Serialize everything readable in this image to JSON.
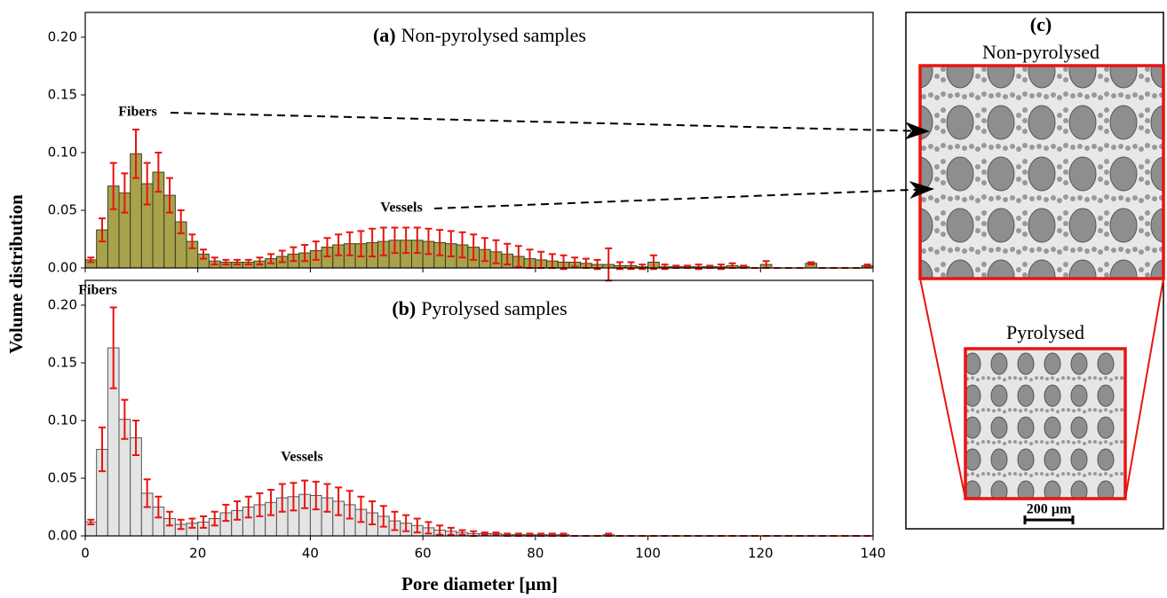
{
  "chart_data": [
    {
      "type": "histogram",
      "label": "(a)",
      "title": "Non-pyrolysed samples",
      "ylabel": "Volume distribution",
      "bins": [
        0,
        2,
        4,
        6,
        8,
        10,
        12,
        14,
        16,
        18,
        20,
        22,
        24,
        26,
        28,
        30,
        32,
        34,
        36,
        38,
        40,
        42,
        44,
        46,
        48,
        50,
        52,
        54,
        56,
        58,
        60,
        62,
        64,
        66,
        68,
        70,
        72,
        74,
        76,
        78,
        80,
        82,
        84,
        86,
        88,
        90,
        92,
        94,
        96,
        98,
        100,
        102,
        104,
        106,
        108,
        110,
        112,
        114,
        116,
        118,
        120,
        122,
        124,
        126,
        128,
        130,
        132,
        134,
        136,
        138,
        140
      ],
      "values": [
        0.007,
        0.033,
        0.071,
        0.065,
        0.099,
        0.073,
        0.083,
        0.063,
        0.04,
        0.023,
        0.012,
        0.006,
        0.005,
        0.005,
        0.005,
        0.006,
        0.008,
        0.01,
        0.012,
        0.013,
        0.015,
        0.018,
        0.02,
        0.021,
        0.021,
        0.022,
        0.023,
        0.024,
        0.024,
        0.024,
        0.023,
        0.022,
        0.021,
        0.02,
        0.018,
        0.016,
        0.014,
        0.012,
        0.01,
        0.008,
        0.007,
        0.006,
        0.005,
        0.005,
        0.004,
        0.003,
        0.003,
        0.002,
        0.002,
        0.001,
        0.005,
        0.001,
        0.001,
        0.001,
        0.001,
        0.001,
        0.001,
        0.002,
        0.001,
        0,
        0.003,
        0,
        0,
        0,
        0.004,
        0,
        0,
        0,
        0,
        0.002
      ],
      "errors": [
        0.002,
        0.01,
        0.02,
        0.017,
        0.021,
        0.018,
        0.017,
        0.015,
        0.01,
        0.006,
        0.004,
        0.003,
        0.002,
        0.002,
        0.002,
        0.003,
        0.004,
        0.005,
        0.006,
        0.007,
        0.008,
        0.008,
        0.009,
        0.01,
        0.011,
        0.012,
        0.012,
        0.011,
        0.011,
        0.011,
        0.011,
        0.011,
        0.011,
        0.011,
        0.011,
        0.01,
        0.01,
        0.009,
        0.009,
        0.008,
        0.007,
        0.006,
        0.006,
        0.004,
        0.004,
        0.004,
        0.014,
        0.003,
        0.003,
        0.002,
        0.006,
        0.002,
        0.001,
        0.001,
        0.002,
        0.001,
        0.002,
        0.002,
        0.001,
        0,
        0.003,
        0,
        0,
        0,
        0.001,
        0,
        0,
        0,
        0,
        0.001
      ],
      "color": "#a9a24c",
      "edge_color": "#3d3d1e",
      "error_color": "#e8140f",
      "xlim": [
        0,
        140
      ],
      "xticks": [
        0,
        20,
        40,
        60,
        80,
        100,
        120,
        140
      ],
      "ylim": [
        0,
        0.2215
      ],
      "yticks": [
        {
          "value": 0,
          "label": "0.00"
        },
        {
          "value": 0.05,
          "label": "0.05"
        },
        {
          "value": 0.1,
          "label": "0.10"
        },
        {
          "value": 0.15,
          "label": "0.15"
        },
        {
          "value": 0.2,
          "label": "0.20"
        }
      ],
      "annotations": [
        "Fibers",
        "Vessels"
      ]
    },
    {
      "type": "histogram",
      "label": "(b)",
      "title": "Pyrolysed samples",
      "xlabel": "Pore diameter [µm]",
      "bins": [
        0,
        2,
        4,
        6,
        8,
        10,
        12,
        14,
        16,
        18,
        20,
        22,
        24,
        26,
        28,
        30,
        32,
        34,
        36,
        38,
        40,
        42,
        44,
        46,
        48,
        50,
        52,
        54,
        56,
        58,
        60,
        62,
        64,
        66,
        68,
        70,
        72,
        74,
        76,
        78,
        80,
        82,
        84,
        86,
        88,
        90,
        92,
        94,
        96,
        98,
        100,
        102,
        104,
        106,
        108,
        110,
        112,
        114,
        116,
        118,
        120,
        122,
        124,
        126,
        128,
        130,
        132,
        134,
        136,
        138,
        140
      ],
      "values": [
        0.012,
        0.075,
        0.163,
        0.101,
        0.085,
        0.037,
        0.025,
        0.015,
        0.01,
        0.011,
        0.012,
        0.015,
        0.02,
        0.022,
        0.025,
        0.027,
        0.029,
        0.033,
        0.034,
        0.036,
        0.035,
        0.033,
        0.03,
        0.027,
        0.023,
        0.02,
        0.017,
        0.013,
        0.011,
        0.009,
        0.007,
        0.005,
        0.004,
        0.003,
        0.002,
        0.002,
        0.002,
        0.001,
        0.001,
        0.001,
        0.001,
        0.001,
        0.001,
        0,
        0,
        0,
        0.001,
        0,
        0,
        0,
        0,
        0,
        0,
        0,
        0,
        0,
        0,
        0,
        0,
        0,
        0,
        0,
        0,
        0,
        0,
        0,
        0,
        0,
        0,
        0
      ],
      "errors": [
        0.002,
        0.019,
        0.035,
        0.017,
        0.015,
        0.012,
        0.009,
        0.006,
        0.004,
        0.004,
        0.005,
        0.006,
        0.007,
        0.008,
        0.009,
        0.01,
        0.011,
        0.012,
        0.012,
        0.012,
        0.012,
        0.012,
        0.012,
        0.012,
        0.011,
        0.01,
        0.009,
        0.008,
        0.007,
        0.006,
        0.005,
        0.004,
        0.003,
        0.002,
        0.002,
        0.001,
        0.001,
        0.001,
        0.001,
        0.001,
        0.001,
        0.001,
        0.001,
        0,
        0,
        0,
        0.001,
        0,
        0,
        0,
        0,
        0,
        0,
        0,
        0,
        0,
        0,
        0,
        0,
        0,
        0,
        0,
        0,
        0,
        0,
        0,
        0,
        0,
        0,
        0
      ],
      "color": "#e4e4e4",
      "edge_color": "#555555",
      "error_color": "#e8140f",
      "xlim": [
        0,
        140
      ],
      "xticks": [
        0,
        20,
        40,
        60,
        80,
        100,
        120,
        140
      ],
      "ylim": [
        0,
        0.2215
      ],
      "yticks": [
        {
          "value": 0,
          "label": "0.00"
        },
        {
          "value": 0.05,
          "label": "0.05"
        },
        {
          "value": 0.1,
          "label": "0.10"
        },
        {
          "value": 0.15,
          "label": "0.15"
        },
        {
          "value": 0.2,
          "label": "0.20"
        }
      ],
      "annotations": [
        "Fibers",
        "Vessels"
      ]
    }
  ],
  "image_panel": {
    "label": "(c)",
    "top_caption": "Non-pyrolysed",
    "bottom_caption": "Pyrolysed",
    "scale_bar": "200 µm"
  }
}
